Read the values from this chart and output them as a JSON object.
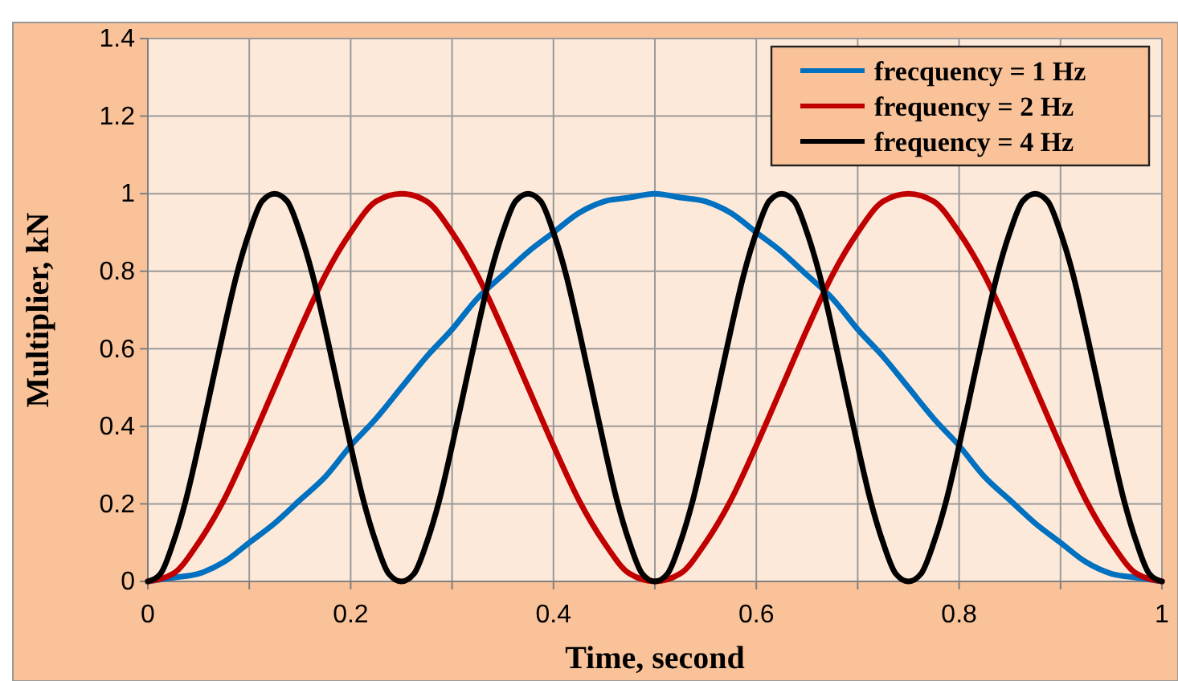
{
  "chart_data": {
    "type": "line",
    "xlabel": "Time, second",
    "ylabel": "Multiplier, kN",
    "x": [
      0,
      0.025,
      0.05,
      0.075,
      0.1,
      0.125,
      0.15,
      0.175,
      0.2,
      0.225,
      0.25,
      0.275,
      0.3,
      0.325,
      0.35,
      0.375,
      0.4,
      0.425,
      0.45,
      0.475,
      0.5,
      0.525,
      0.55,
      0.575,
      0.6,
      0.625,
      0.65,
      0.675,
      0.7,
      0.725,
      0.75,
      0.775,
      0.8,
      0.825,
      0.85,
      0.875,
      0.9,
      0.925,
      0.95,
      0.975,
      1
    ],
    "series": [
      {
        "name": "frecquency = 1 Hz",
        "color": "#0070c0",
        "values": [
          0,
          0.01,
          0.02,
          0.05,
          0.1,
          0.15,
          0.21,
          0.27,
          0.35,
          0.42,
          0.5,
          0.58,
          0.65,
          0.73,
          0.79,
          0.85,
          0.9,
          0.95,
          0.98,
          0.99,
          1,
          0.99,
          0.98,
          0.95,
          0.9,
          0.85,
          0.79,
          0.73,
          0.65,
          0.58,
          0.5,
          0.42,
          0.35,
          0.27,
          0.21,
          0.15,
          0.1,
          0.05,
          0.02,
          0.01,
          0
        ]
      },
      {
        "name": "frequency = 2 Hz",
        "color": "#c00000",
        "values": [
          0,
          0.02,
          0.1,
          0.21,
          0.35,
          0.5,
          0.65,
          0.79,
          0.9,
          0.98,
          1,
          0.98,
          0.9,
          0.79,
          0.65,
          0.5,
          0.35,
          0.21,
          0.1,
          0.02,
          0,
          0.02,
          0.1,
          0.21,
          0.35,
          0.5,
          0.65,
          0.79,
          0.9,
          0.98,
          1,
          0.98,
          0.9,
          0.79,
          0.65,
          0.5,
          0.35,
          0.21,
          0.1,
          0.02,
          0
        ]
      },
      {
        "name": "frequency = 4 Hz",
        "color": "#000000",
        "x": [
          0,
          0.0125,
          0.025,
          0.0375,
          0.05,
          0.0625,
          0.075,
          0.0875,
          0.1,
          0.1125,
          0.125,
          0.1375,
          0.15,
          0.1625,
          0.175,
          0.1875,
          0.2,
          0.2125,
          0.225,
          0.2375,
          0.25,
          0.2625,
          0.275,
          0.2875,
          0.3,
          0.3125,
          0.325,
          0.3375,
          0.35,
          0.3625,
          0.375,
          0.3875,
          0.4,
          0.4125,
          0.425,
          0.4375,
          0.45,
          0.4625,
          0.475,
          0.4875,
          0.5,
          0.5125,
          0.525,
          0.5375,
          0.55,
          0.5625,
          0.575,
          0.5875,
          0.6,
          0.6125,
          0.625,
          0.6375,
          0.65,
          0.6625,
          0.675,
          0.6875,
          0.7,
          0.7125,
          0.725,
          0.7375,
          0.75,
          0.7625,
          0.775,
          0.7875,
          0.8,
          0.8125,
          0.825,
          0.8375,
          0.85,
          0.8625,
          0.875,
          0.8875,
          0.9,
          0.9125,
          0.925,
          0.9375,
          0.95,
          0.9625,
          0.975,
          0.9875,
          1
        ],
        "values": [
          0,
          0.02,
          0.1,
          0.21,
          0.35,
          0.5,
          0.65,
          0.79,
          0.9,
          0.98,
          1,
          0.98,
          0.9,
          0.79,
          0.65,
          0.5,
          0.35,
          0.21,
          0.1,
          0.02,
          0,
          0.02,
          0.1,
          0.21,
          0.35,
          0.5,
          0.65,
          0.79,
          0.9,
          0.98,
          1,
          0.98,
          0.9,
          0.79,
          0.65,
          0.5,
          0.35,
          0.21,
          0.1,
          0.02,
          0,
          0.02,
          0.1,
          0.21,
          0.35,
          0.5,
          0.65,
          0.79,
          0.9,
          0.98,
          1,
          0.98,
          0.9,
          0.79,
          0.65,
          0.5,
          0.35,
          0.21,
          0.1,
          0.02,
          0,
          0.02,
          0.1,
          0.21,
          0.35,
          0.5,
          0.65,
          0.79,
          0.9,
          0.98,
          1,
          0.98,
          0.9,
          0.79,
          0.65,
          0.5,
          0.35,
          0.21,
          0.1,
          0.02,
          0
        ]
      }
    ],
    "xlim": [
      0,
      1
    ],
    "xticks": [
      0,
      {
        "value": 0.1,
        "label": null
      },
      0.2,
      {
        "value": 0.3,
        "label": null
      },
      0.4,
      {
        "value": 0.5,
        "label": null
      },
      0.6,
      {
        "value": 0.7,
        "label": null
      },
      0.8,
      {
        "value": 0.9,
        "label": null
      },
      1
    ],
    "ylim": [
      0,
      1.4
    ],
    "yticks": [
      0,
      0.2,
      0.4,
      0.6,
      0.8,
      1,
      1.2,
      1.4
    ],
    "grid": true,
    "legend": "top right",
    "marker": "none",
    "line_style": "solid"
  }
}
